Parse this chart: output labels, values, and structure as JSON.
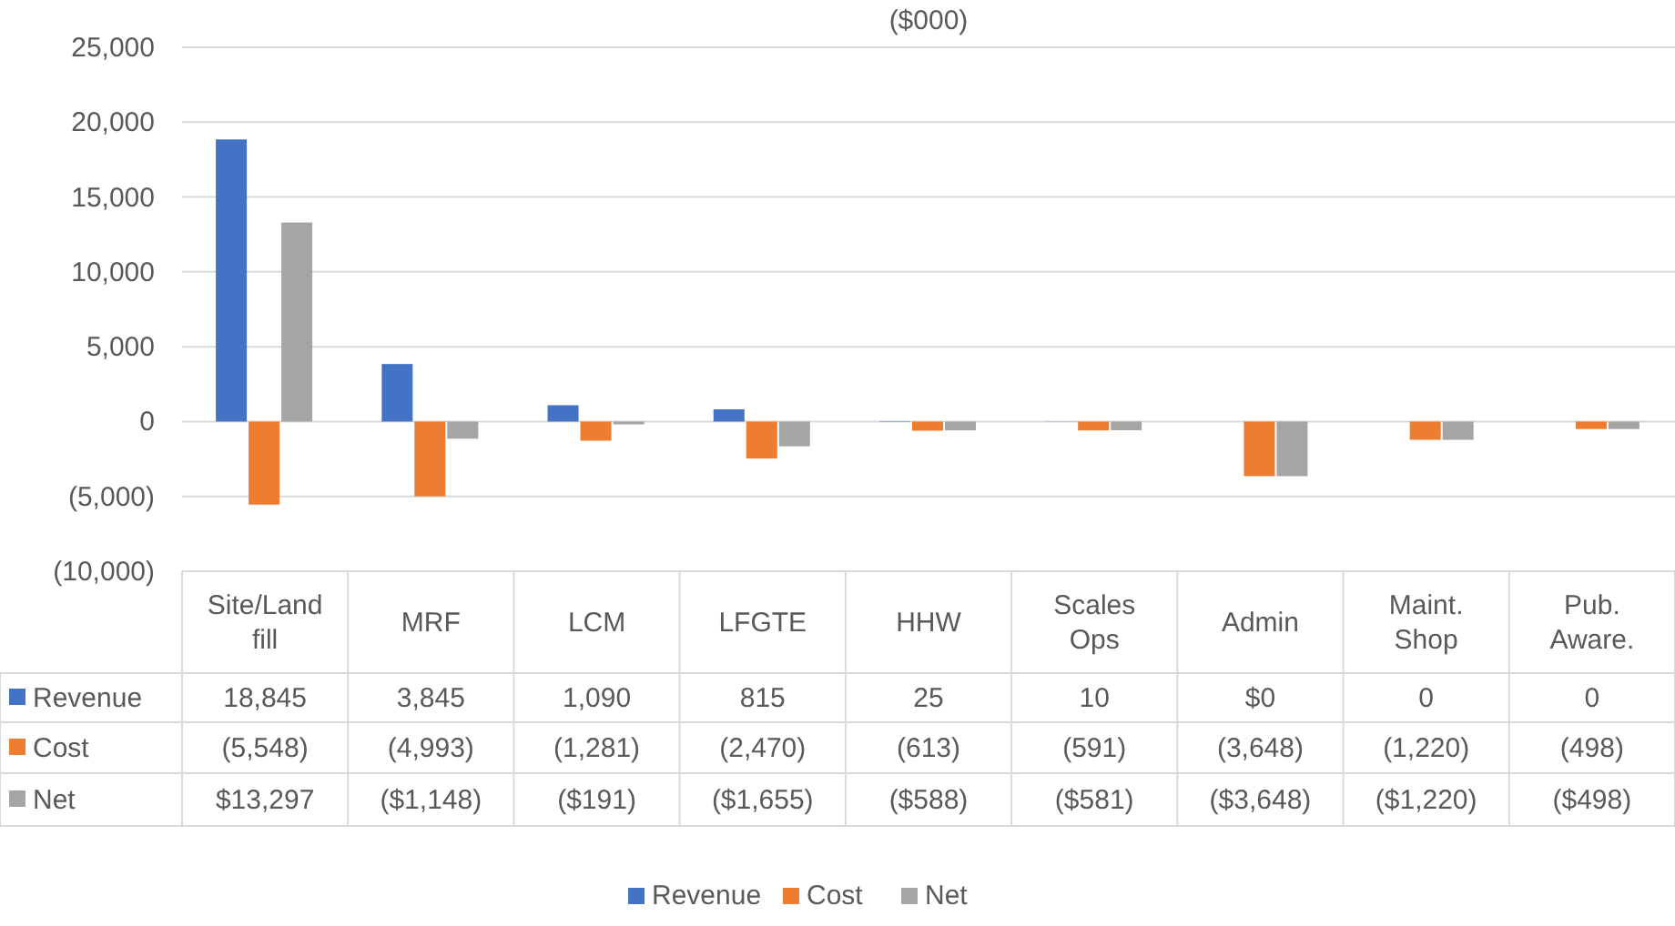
{
  "chart_data": {
    "type": "bar",
    "title": "($000)",
    "categories": [
      "Site/Land fill",
      "MRF",
      "LCM",
      "LFGTE",
      "HHW",
      "Scales Ops",
      "Admin",
      "Maint. Shop",
      "Pub. Aware."
    ],
    "series": [
      {
        "name": "Revenue",
        "color": "#4472c4",
        "values": [
          18845,
          3845,
          1090,
          815,
          25,
          10,
          0,
          0,
          0
        ],
        "value_labels": [
          "18,845",
          "3,845",
          "1,090",
          "815",
          "25",
          "10",
          "$0",
          "0",
          "0"
        ]
      },
      {
        "name": "Cost",
        "color": "#ed7d31",
        "values": [
          -5548,
          -4993,
          -1281,
          -2470,
          -613,
          -591,
          -3648,
          -1220,
          -498
        ],
        "value_labels": [
          "(5,548)",
          "(4,993)",
          "(1,281)",
          "(2,470)",
          "(613)",
          "(591)",
          "(3,648)",
          "(1,220)",
          "(498)"
        ]
      },
      {
        "name": "Net",
        "color": "#a5a5a5",
        "values": [
          13297,
          -1148,
          -191,
          -1655,
          -588,
          -581,
          -3648,
          -1220,
          -498
        ],
        "value_labels": [
          "$13,297",
          "($1,148)",
          "($191)",
          "($1,655)",
          "($588)",
          "($581)",
          "($3,648)",
          "($1,220)",
          "($498)"
        ]
      }
    ],
    "ylim": [
      -10000,
      25000
    ],
    "yticks": [
      {
        "value": -10000,
        "label": "(10,000)"
      },
      {
        "value": -5000,
        "label": "(5,000)"
      },
      0,
      {
        "value": 5000,
        "label": "5,000"
      },
      {
        "value": 10000,
        "label": "10,000"
      },
      {
        "value": 15000,
        "label": "15,000"
      },
      {
        "value": 20000,
        "label": "20,000"
      },
      {
        "value": 25000,
        "label": "25,000"
      }
    ],
    "grid": "y",
    "legend": "bottom"
  }
}
